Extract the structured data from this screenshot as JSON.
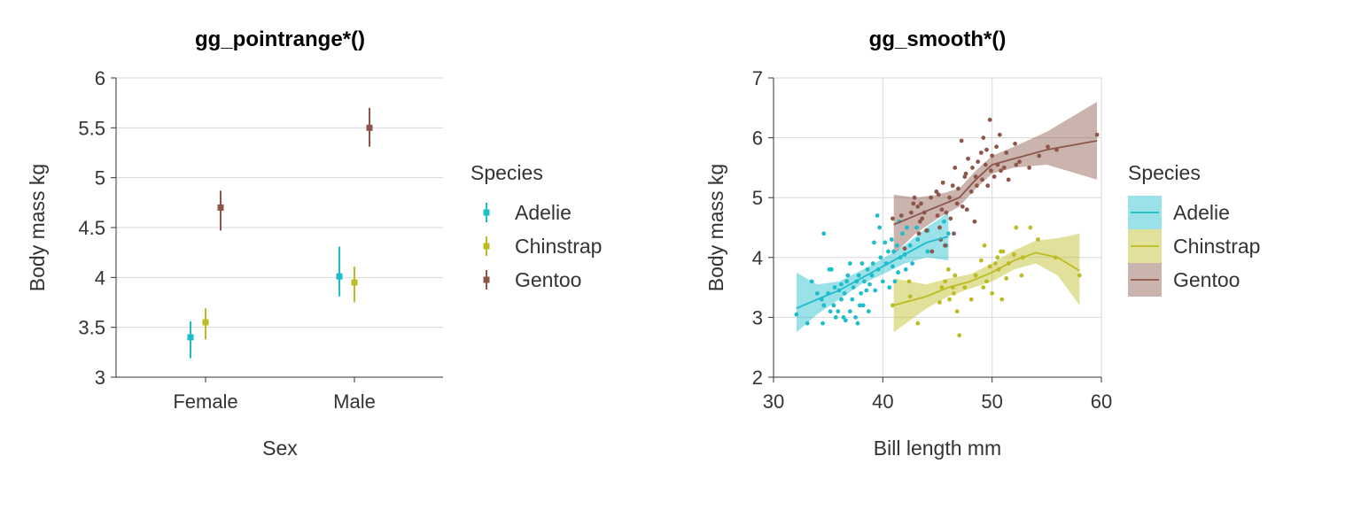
{
  "colors": {
    "Adelie": "#1ebdcc",
    "Chinstrap": "#bcbc22",
    "Gentoo": "#8c564b"
  },
  "chart_data": [
    {
      "type": "pointrange",
      "title": "gg_pointrange*()",
      "xlabel": "Sex",
      "ylabel": "Body mass kg",
      "categories": [
        "Female",
        "Male"
      ],
      "ylim": [
        3,
        6
      ],
      "yticks": [
        "3",
        "3.5",
        "4",
        "4.5",
        "5",
        "5.5",
        "6"
      ],
      "legend_title": "Species",
      "legend_position": "right",
      "grid": true,
      "series": [
        {
          "name": "Adelie",
          "points": [
            {
              "x": "Female",
              "y": 3.4,
              "ymin": 3.19,
              "ymax": 3.56
            },
            {
              "x": "Male",
              "y": 4.01,
              "ymin": 3.81,
              "ymax": 4.31
            }
          ]
        },
        {
          "name": "Chinstrap",
          "points": [
            {
              "x": "Female",
              "y": 3.55,
              "ymin": 3.38,
              "ymax": 3.69
            },
            {
              "x": "Male",
              "y": 3.95,
              "ymin": 3.75,
              "ymax": 4.11
            }
          ]
        },
        {
          "name": "Gentoo",
          "points": [
            {
              "x": "Female",
              "y": 4.7,
              "ymin": 4.47,
              "ymax": 4.87
            },
            {
              "x": "Male",
              "y": 5.5,
              "ymin": 5.31,
              "ymax": 5.7
            }
          ]
        }
      ]
    },
    {
      "type": "scatter",
      "title": "gg_smooth*()",
      "xlabel": "Bill length mm",
      "ylabel": "Body mass kg",
      "xlim": [
        30,
        60
      ],
      "ylim": [
        2,
        7
      ],
      "xticks": [
        "30",
        "40",
        "50",
        "60"
      ],
      "yticks": [
        "2",
        "3",
        "4",
        "5",
        "6",
        "7"
      ],
      "legend_title": "Species",
      "legend_position": "right",
      "grid": true,
      "series": [
        {
          "name": "Adelie",
          "smooth": [
            [
              32.1,
              3.15
            ],
            [
              34,
              3.3
            ],
            [
              36,
              3.45
            ],
            [
              38,
              3.65
            ],
            [
              40,
              3.85
            ],
            [
              42,
              4.05
            ],
            [
              44,
              4.25
            ],
            [
              46,
              4.35
            ]
          ],
          "band": [
            [
              32.1,
              2.75,
              3.75
            ],
            [
              34,
              3.05,
              3.55
            ],
            [
              36,
              3.3,
              3.6
            ],
            [
              38,
              3.55,
              3.78
            ],
            [
              40,
              3.72,
              3.98
            ],
            [
              42,
              3.9,
              4.2
            ],
            [
              44,
              4.0,
              4.5
            ],
            [
              46,
              3.95,
              4.75
            ]
          ],
          "points": [
            [
              32.1,
              3.05
            ],
            [
              33.1,
              2.9
            ],
            [
              33.5,
              3.6
            ],
            [
              34,
              3.4
            ],
            [
              34.4,
              3.3
            ],
            [
              34.5,
              2.9
            ],
            [
              34.6,
              3.2
            ],
            [
              34.6,
              4.4
            ],
            [
              35,
              3.4
            ],
            [
              35.1,
              3.8
            ],
            [
              35.2,
              3.1
            ],
            [
              35.3,
              3.8
            ],
            [
              35.5,
              3.2
            ],
            [
              35.6,
              3.5
            ],
            [
              35.7,
              3.0
            ],
            [
              35.9,
              3.1
            ],
            [
              36,
              3.45
            ],
            [
              36.2,
              3.3
            ],
            [
              36.2,
              3.55
            ],
            [
              36.4,
              3.0
            ],
            [
              36.5,
              3.4
            ],
            [
              36.6,
              2.95
            ],
            [
              36.7,
              3.6
            ],
            [
              36.8,
              3.7
            ],
            [
              37,
              3.1
            ],
            [
              37,
              3.9
            ],
            [
              37.2,
              3.3
            ],
            [
              37.3,
              3.5
            ],
            [
              37.5,
              3.0
            ],
            [
              37.6,
              3.6
            ],
            [
              37.7,
              2.9
            ],
            [
              37.8,
              3.7
            ],
            [
              37.9,
              3.2
            ],
            [
              38,
              3.4
            ],
            [
              38.1,
              3.9
            ],
            [
              38.2,
              3.2
            ],
            [
              38.3,
              3.6
            ],
            [
              38.5,
              3.45
            ],
            [
              38.6,
              3.8
            ],
            [
              38.7,
              3.1
            ],
            [
              38.8,
              3.55
            ],
            [
              39,
              3.7
            ],
            [
              39.1,
              3.9
            ],
            [
              39.2,
              4.25
            ],
            [
              39.3,
              3.45
            ],
            [
              39.5,
              4.7
            ],
            [
              39.6,
              3.8
            ],
            [
              39.7,
              4.5
            ],
            [
              39.8,
              4.0
            ],
            [
              40,
              3.6
            ],
            [
              40.2,
              4.25
            ],
            [
              40.3,
              3.9
            ],
            [
              40.5,
              4.1
            ],
            [
              40.6,
              3.5
            ],
            [
              40.8,
              4.3
            ],
            [
              40.9,
              3.85
            ],
            [
              41,
              4.1
            ],
            [
              41.1,
              3.6
            ],
            [
              41.3,
              4.2
            ],
            [
              41.4,
              3.75
            ],
            [
              41.5,
              4.6
            ],
            [
              41.6,
              4.0
            ],
            [
              41.8,
              4.4
            ],
            [
              42,
              4.05
            ],
            [
              42.1,
              3.8
            ],
            [
              42.2,
              4.5
            ],
            [
              42.5,
              4.2
            ],
            [
              42.7,
              3.9
            ],
            [
              43.1,
              4.5
            ],
            [
              43.2,
              4.3
            ],
            [
              44.1,
              4.1
            ],
            [
              44.1,
              4.45
            ],
            [
              45.6,
              4.6
            ],
            [
              45.8,
              4.2
            ],
            [
              46,
              4.4
            ]
          ]
        },
        {
          "name": "Chinstrap",
          "smooth": [
            [
              41,
              3.2
            ],
            [
              44,
              3.35
            ],
            [
              46,
              3.5
            ],
            [
              48,
              3.6
            ],
            [
              50,
              3.75
            ],
            [
              52,
              3.95
            ],
            [
              54,
              4.08
            ],
            [
              56,
              4.0
            ],
            [
              58,
              3.78
            ]
          ],
          "band": [
            [
              41,
              2.75,
              3.65
            ],
            [
              44,
              3.15,
              3.55
            ],
            [
              46,
              3.35,
              3.65
            ],
            [
              48,
              3.48,
              3.72
            ],
            [
              50,
              3.6,
              3.9
            ],
            [
              52,
              3.8,
              4.12
            ],
            [
              54,
              3.9,
              4.28
            ],
            [
              56,
              3.7,
              4.32
            ],
            [
              58,
              3.2,
              4.4
            ]
          ],
          "points": [
            [
              40.9,
              3.2
            ],
            [
              42.4,
              3.6
            ],
            [
              42.5,
              3.35
            ],
            [
              43.2,
              2.9
            ],
            [
              45.2,
              3.25
            ],
            [
              45.4,
              3.5
            ],
            [
              45.7,
              3.6
            ],
            [
              46,
              3.8
            ],
            [
              46.1,
              3.3
            ],
            [
              46.4,
              3.5
            ],
            [
              46.5,
              3.4
            ],
            [
              46.6,
              3.7
            ],
            [
              46.8,
              3.1
            ],
            [
              47,
              2.7
            ],
            [
              47.5,
              3.5
            ],
            [
              48.1,
              3.3
            ],
            [
              48.5,
              3.7
            ],
            [
              49,
              3.95
            ],
            [
              49.2,
              3.5
            ],
            [
              49.3,
              4.2
            ],
            [
              49.5,
              3.6
            ],
            [
              49.8,
              3.85
            ],
            [
              50,
              3.4
            ],
            [
              50.3,
              3.9
            ],
            [
              50.5,
              4.0
            ],
            [
              50.6,
              3.8
            ],
            [
              50.8,
              4.1
            ],
            [
              50.9,
              3.3
            ],
            [
              51,
              4.1
            ],
            [
              51.3,
              3.65
            ],
            [
              51.5,
              3.9
            ],
            [
              52,
              4.05
            ],
            [
              52.2,
              4.5
            ],
            [
              52.7,
              3.7
            ],
            [
              52.8,
              4.0
            ],
            [
              53.5,
              4.5
            ],
            [
              54.2,
              4.3
            ],
            [
              55.8,
              4.0
            ],
            [
              58,
              3.7
            ]
          ]
        },
        {
          "name": "Gentoo",
          "smooth": [
            [
              41,
              4.55
            ],
            [
              43,
              4.7
            ],
            [
              45,
              4.85
            ],
            [
              47,
              5.0
            ],
            [
              48.5,
              5.3
            ],
            [
              50,
              5.55
            ],
            [
              52,
              5.65
            ],
            [
              55,
              5.8
            ],
            [
              59.6,
              5.95
            ]
          ],
          "band": [
            [
              41,
              4.05,
              5.05
            ],
            [
              43,
              4.4,
              5.0
            ],
            [
              45,
              4.65,
              5.05
            ],
            [
              47,
              4.85,
              5.15
            ],
            [
              48.5,
              5.15,
              5.45
            ],
            [
              50,
              5.4,
              5.7
            ],
            [
              52,
              5.5,
              5.85
            ],
            [
              55,
              5.55,
              6.1
            ],
            [
              59.6,
              5.3,
              6.6
            ]
          ],
          "points": [
            [
              40.9,
              4.65
            ],
            [
              41.7,
              4.7
            ],
            [
              42,
              4.15
            ],
            [
              42.6,
              4.75
            ],
            [
              42.8,
              4.9
            ],
            [
              42.9,
              5.0
            ],
            [
              43.2,
              4.85
            ],
            [
              43.3,
              4.4
            ],
            [
              43.4,
              4.6
            ],
            [
              43.5,
              4.9
            ],
            [
              43.6,
              4.65
            ],
            [
              43.8,
              4.75
            ],
            [
              44,
              4.45
            ],
            [
              44.4,
              5.0
            ],
            [
              44.5,
              4.1
            ],
            [
              44.9,
              5.1
            ],
            [
              45,
              4.7
            ],
            [
              45.1,
              5.05
            ],
            [
              45.2,
              4.5
            ],
            [
              45.3,
              4.3
            ],
            [
              45.4,
              4.8
            ],
            [
              45.5,
              5.25
            ],
            [
              45.7,
              4.2
            ],
            [
              45.8,
              4.75
            ],
            [
              46.1,
              5.0
            ],
            [
              46.2,
              4.65
            ],
            [
              46.4,
              5.2
            ],
            [
              46.5,
              4.4
            ],
            [
              46.6,
              5.5
            ],
            [
              46.8,
              4.9
            ],
            [
              46.9,
              5.15
            ],
            [
              47.2,
              5.95
            ],
            [
              47.3,
              4.85
            ],
            [
              47.5,
              5.35
            ],
            [
              47.6,
              5.4
            ],
            [
              47.7,
              4.8
            ],
            [
              47.8,
              5.65
            ],
            [
              48.1,
              5.1
            ],
            [
              48.2,
              5.5
            ],
            [
              48.4,
              4.6
            ],
            [
              48.5,
              5.35
            ],
            [
              48.6,
              5.2
            ],
            [
              48.7,
              5.6
            ],
            [
              49,
              5.75
            ],
            [
              49.1,
              5.3
            ],
            [
              49.2,
              6.0
            ],
            [
              49.4,
              5.55
            ],
            [
              49.5,
              5.8
            ],
            [
              49.6,
              5.2
            ],
            [
              49.8,
              6.3
            ],
            [
              49.9,
              5.45
            ],
            [
              50,
              5.7
            ],
            [
              50.2,
              5.35
            ],
            [
              50.4,
              5.85
            ],
            [
              50.5,
              5.55
            ],
            [
              50.7,
              6.05
            ],
            [
              50.8,
              5.45
            ],
            [
              51.1,
              5.5
            ],
            [
              51.3,
              5.75
            ],
            [
              51.5,
              5.3
            ],
            [
              52.1,
              5.9
            ],
            [
              52.2,
              5.55
            ],
            [
              52.5,
              5.6
            ],
            [
              53.4,
              5.5
            ],
            [
              54.3,
              5.7
            ],
            [
              55.1,
              5.85
            ],
            [
              55.9,
              5.8
            ],
            [
              59.6,
              6.05
            ]
          ]
        }
      ]
    }
  ]
}
